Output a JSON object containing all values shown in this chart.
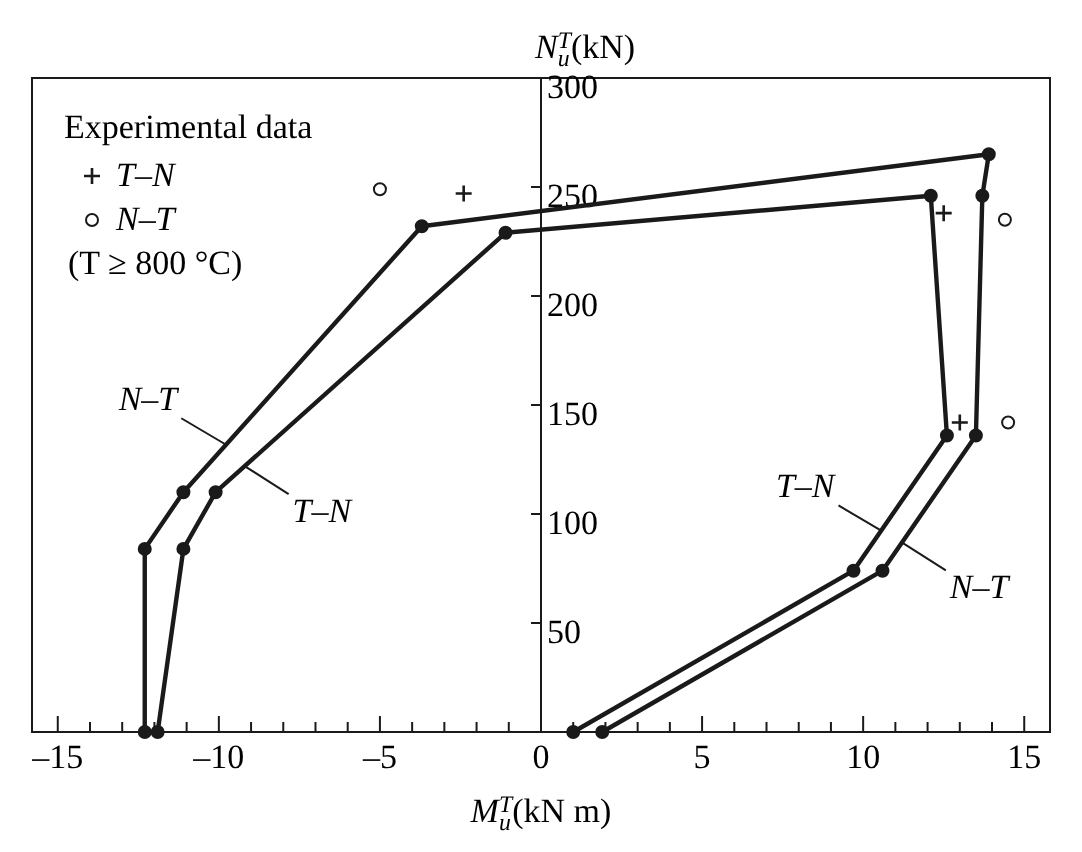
{
  "chart_data": {
    "type": "line",
    "xlabel": "M$_{u}$$^{T}$(kN m)",
    "ylabel": "N$_{u}$$^{T}$(kN)",
    "legend_title": "Experimental data",
    "legend": "top left",
    "line_style": "solid",
    "xlim": [
      -15.8,
      15.8
    ],
    "ylim": [
      0,
      300
    ],
    "xticks": [
      {
        "value": -15,
        "label": "–15"
      },
      {
        "value": -14,
        "label": null
      },
      {
        "value": -13,
        "label": null
      },
      {
        "value": -12,
        "label": null
      },
      {
        "value": -11,
        "label": null
      },
      {
        "value": -10,
        "label": "–10"
      },
      {
        "value": -9,
        "label": null
      },
      {
        "value": -8,
        "label": null
      },
      {
        "value": -7,
        "label": null
      },
      {
        "value": -6,
        "label": null
      },
      {
        "value": -5,
        "label": "–5"
      },
      {
        "value": -4,
        "label": null
      },
      {
        "value": -3,
        "label": null
      },
      {
        "value": -2,
        "label": null
      },
      {
        "value": -1,
        "label": null
      },
      0,
      {
        "value": 1,
        "label": null
      },
      {
        "value": 2,
        "label": null
      },
      {
        "value": 3,
        "label": null
      },
      {
        "value": 4,
        "label": null
      },
      5,
      {
        "value": 6,
        "label": null
      },
      {
        "value": 7,
        "label": null
      },
      {
        "value": 8,
        "label": null
      },
      {
        "value": 9,
        "label": null
      },
      10,
      {
        "value": 11,
        "label": null
      },
      {
        "value": 12,
        "label": null
      },
      {
        "value": 13,
        "label": null
      },
      {
        "value": 14,
        "label": null
      },
      15
    ],
    "yticks": [
      50,
      100,
      150,
      200,
      250,
      300
    ],
    "series": [
      {
        "color": "#1a1a1a",
        "marker": "circle",
        "x": [
          -12.3,
          -12.3,
          -11.1,
          -3.7,
          13.9,
          13.7,
          13.5,
          10.6,
          1.9
        ],
        "values": [
          0,
          84,
          110,
          232,
          265,
          246,
          136,
          74,
          0
        ]
      },
      {
        "color": "#1a1a1a",
        "marker": "circle",
        "x": [
          -11.9,
          -11.1,
          -10.1,
          -1.1,
          12.1,
          12.6,
          9.7,
          1.0
        ],
        "values": [
          0,
          84,
          110,
          229,
          246,
          136,
          74,
          0
        ]
      },
      {
        "type": "scatter",
        "name": "T–N",
        "color": "#1a1a1a",
        "marker": "cross",
        "x": [
          -2.4,
          12.5,
          13.0
        ],
        "values": [
          247,
          238,
          142
        ]
      },
      {
        "type": "scatter",
        "name": "N–T",
        "color": "#1a1a1a",
        "marker": "circle",
        "x": [
          -5.0,
          14.4,
          14.5
        ],
        "values": [
          249,
          235,
          142
        ]
      }
    ],
    "annotations": [
      "(T ≥ 800 °C)",
      {
        "text": "N–T",
        "x": -9.8,
        "y": 132
      },
      {
        "text": "T–N",
        "x": -9.2,
        "y": 122
      },
      {
        "text": "T–N",
        "x": 10.6,
        "y": 92
      },
      {
        "text": "N–T",
        "x": 11.2,
        "y": 87
      }
    ]
  }
}
